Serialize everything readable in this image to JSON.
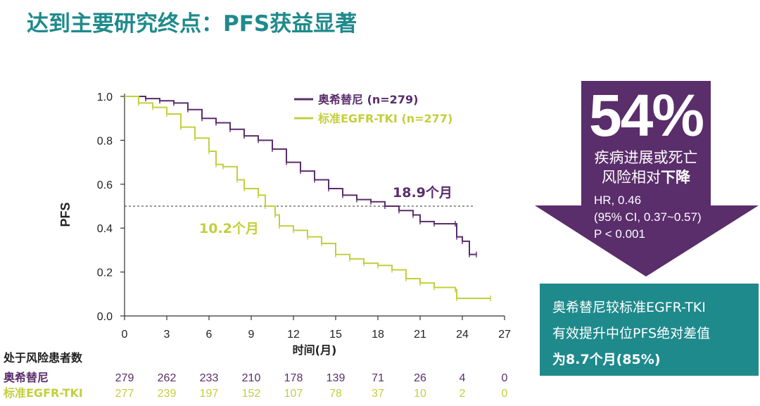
{
  "title": "达到主要研究终点：PFS获益显著",
  "chart_data": {
    "type": "line",
    "subtype": "kaplan-meier",
    "xlabel": "时间(月)",
    "ylabel": "PFS",
    "xlim": [
      0,
      27
    ],
    "ylim": [
      0,
      1.0
    ],
    "xticks": [
      0,
      3,
      6,
      9,
      12,
      15,
      18,
      21,
      24,
      27
    ],
    "yticks": [
      "0.0",
      "0.2",
      "0.4",
      "0.6",
      "0.8",
      "1.0"
    ],
    "median_line_y": 0.5,
    "legend_position": "top-center",
    "series": [
      {
        "name": "奥希替尼 (n=279)",
        "color": "#5a2d6b",
        "median_label": "18.9个月",
        "points": [
          [
            0,
            1.0
          ],
          [
            1.5,
            0.99
          ],
          [
            2.5,
            0.98
          ],
          [
            3.5,
            0.97
          ],
          [
            4.5,
            0.94
          ],
          [
            5.5,
            0.9
          ],
          [
            6.5,
            0.88
          ],
          [
            7.5,
            0.85
          ],
          [
            8.5,
            0.82
          ],
          [
            9.5,
            0.8
          ],
          [
            10.5,
            0.76
          ],
          [
            11.5,
            0.7
          ],
          [
            12.5,
            0.66
          ],
          [
            13.5,
            0.62
          ],
          [
            14.5,
            0.58
          ],
          [
            15.5,
            0.55
          ],
          [
            16.5,
            0.53
          ],
          [
            17.5,
            0.52
          ],
          [
            18.5,
            0.5
          ],
          [
            19.5,
            0.48
          ],
          [
            20.5,
            0.46
          ],
          [
            21,
            0.43
          ],
          [
            22,
            0.42
          ],
          [
            23.5,
            0.42
          ],
          [
            23.6,
            0.36
          ],
          [
            24,
            0.34
          ],
          [
            24.5,
            0.28
          ],
          [
            25,
            0.28
          ]
        ]
      },
      {
        "name": "标准EGFR-TKI (n=277)",
        "color": "#c3cf3c",
        "median_label": "10.2个月",
        "points": [
          [
            0,
            1.0
          ],
          [
            1,
            0.97
          ],
          [
            2,
            0.95
          ],
          [
            3,
            0.92
          ],
          [
            4,
            0.86
          ],
          [
            5,
            0.81
          ],
          [
            6,
            0.75
          ],
          [
            6.5,
            0.69
          ],
          [
            7,
            0.68
          ],
          [
            8,
            0.62
          ],
          [
            8.5,
            0.58
          ],
          [
            9.5,
            0.55
          ],
          [
            10,
            0.5
          ],
          [
            10.7,
            0.46
          ],
          [
            11,
            0.41
          ],
          [
            12,
            0.39
          ],
          [
            13,
            0.36
          ],
          [
            14,
            0.33
          ],
          [
            15,
            0.28
          ],
          [
            16,
            0.26
          ],
          [
            17,
            0.24
          ],
          [
            18,
            0.23
          ],
          [
            19,
            0.21
          ],
          [
            20,
            0.17
          ],
          [
            21,
            0.15
          ],
          [
            22,
            0.13
          ],
          [
            23.5,
            0.12
          ],
          [
            23.6,
            0.08
          ],
          [
            26,
            0.08
          ]
        ]
      }
    ],
    "at_risk": {
      "heading": "处于风险患者数",
      "rows": [
        {
          "label": "奥希替尼",
          "color": "#5a2d6b",
          "values": [
            "279",
            "262",
            "233",
            "210",
            "178",
            "139",
            "71",
            "26",
            "4",
            "0"
          ]
        },
        {
          "label": "标准EGFR-TKI",
          "color": "#c3cf3c",
          "values": [
            "277",
            "239",
            "197",
            "152",
            "107",
            "78",
            "37",
            "10",
            "2",
            "0"
          ]
        }
      ]
    }
  },
  "callout": {
    "percent": "54%",
    "line1": "疾病进展或死亡",
    "line2_prefix": "风险相对",
    "line2_bold": "下降",
    "hr": "HR, 0.46",
    "ci": "(95% CI, 0.37~0.57)",
    "p": "P < 0.001",
    "arrow_color": "#5a2d6b"
  },
  "summary": {
    "line1": "奥希替尼较标准EGFR-TKI",
    "line2": "有效提升中位PFS绝对差值",
    "line3": "为8.7个月(85%)",
    "box_color": "#1f8a8c"
  }
}
